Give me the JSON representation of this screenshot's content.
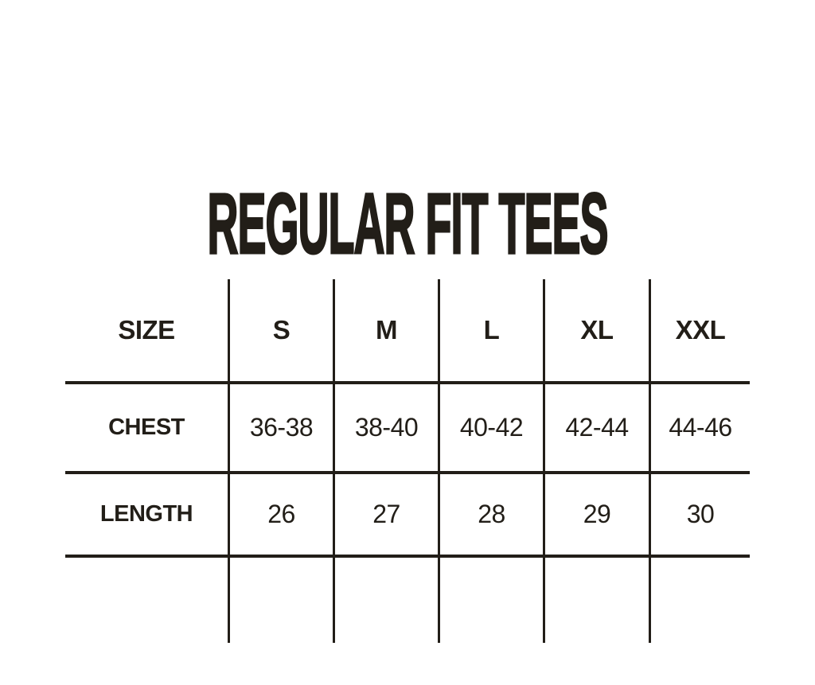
{
  "theme": {
    "background": "#ffffff",
    "ink": "#221e18"
  },
  "chart_data": {
    "type": "table",
    "title": "REGULAR FIT TEES",
    "columns": [
      "SIZE",
      "S",
      "M",
      "L",
      "XL",
      "XXL"
    ],
    "rows": [
      [
        "CHEST",
        "36-38",
        "38-40",
        "40-42",
        "42-44",
        "44-46"
      ],
      [
        "LENGTH",
        "26",
        "27",
        "28",
        "29",
        "30"
      ]
    ],
    "layout": {
      "grid": "internal-lines-only",
      "outer_border": false,
      "trailing_empty_row": true,
      "legend_position": "none"
    }
  }
}
